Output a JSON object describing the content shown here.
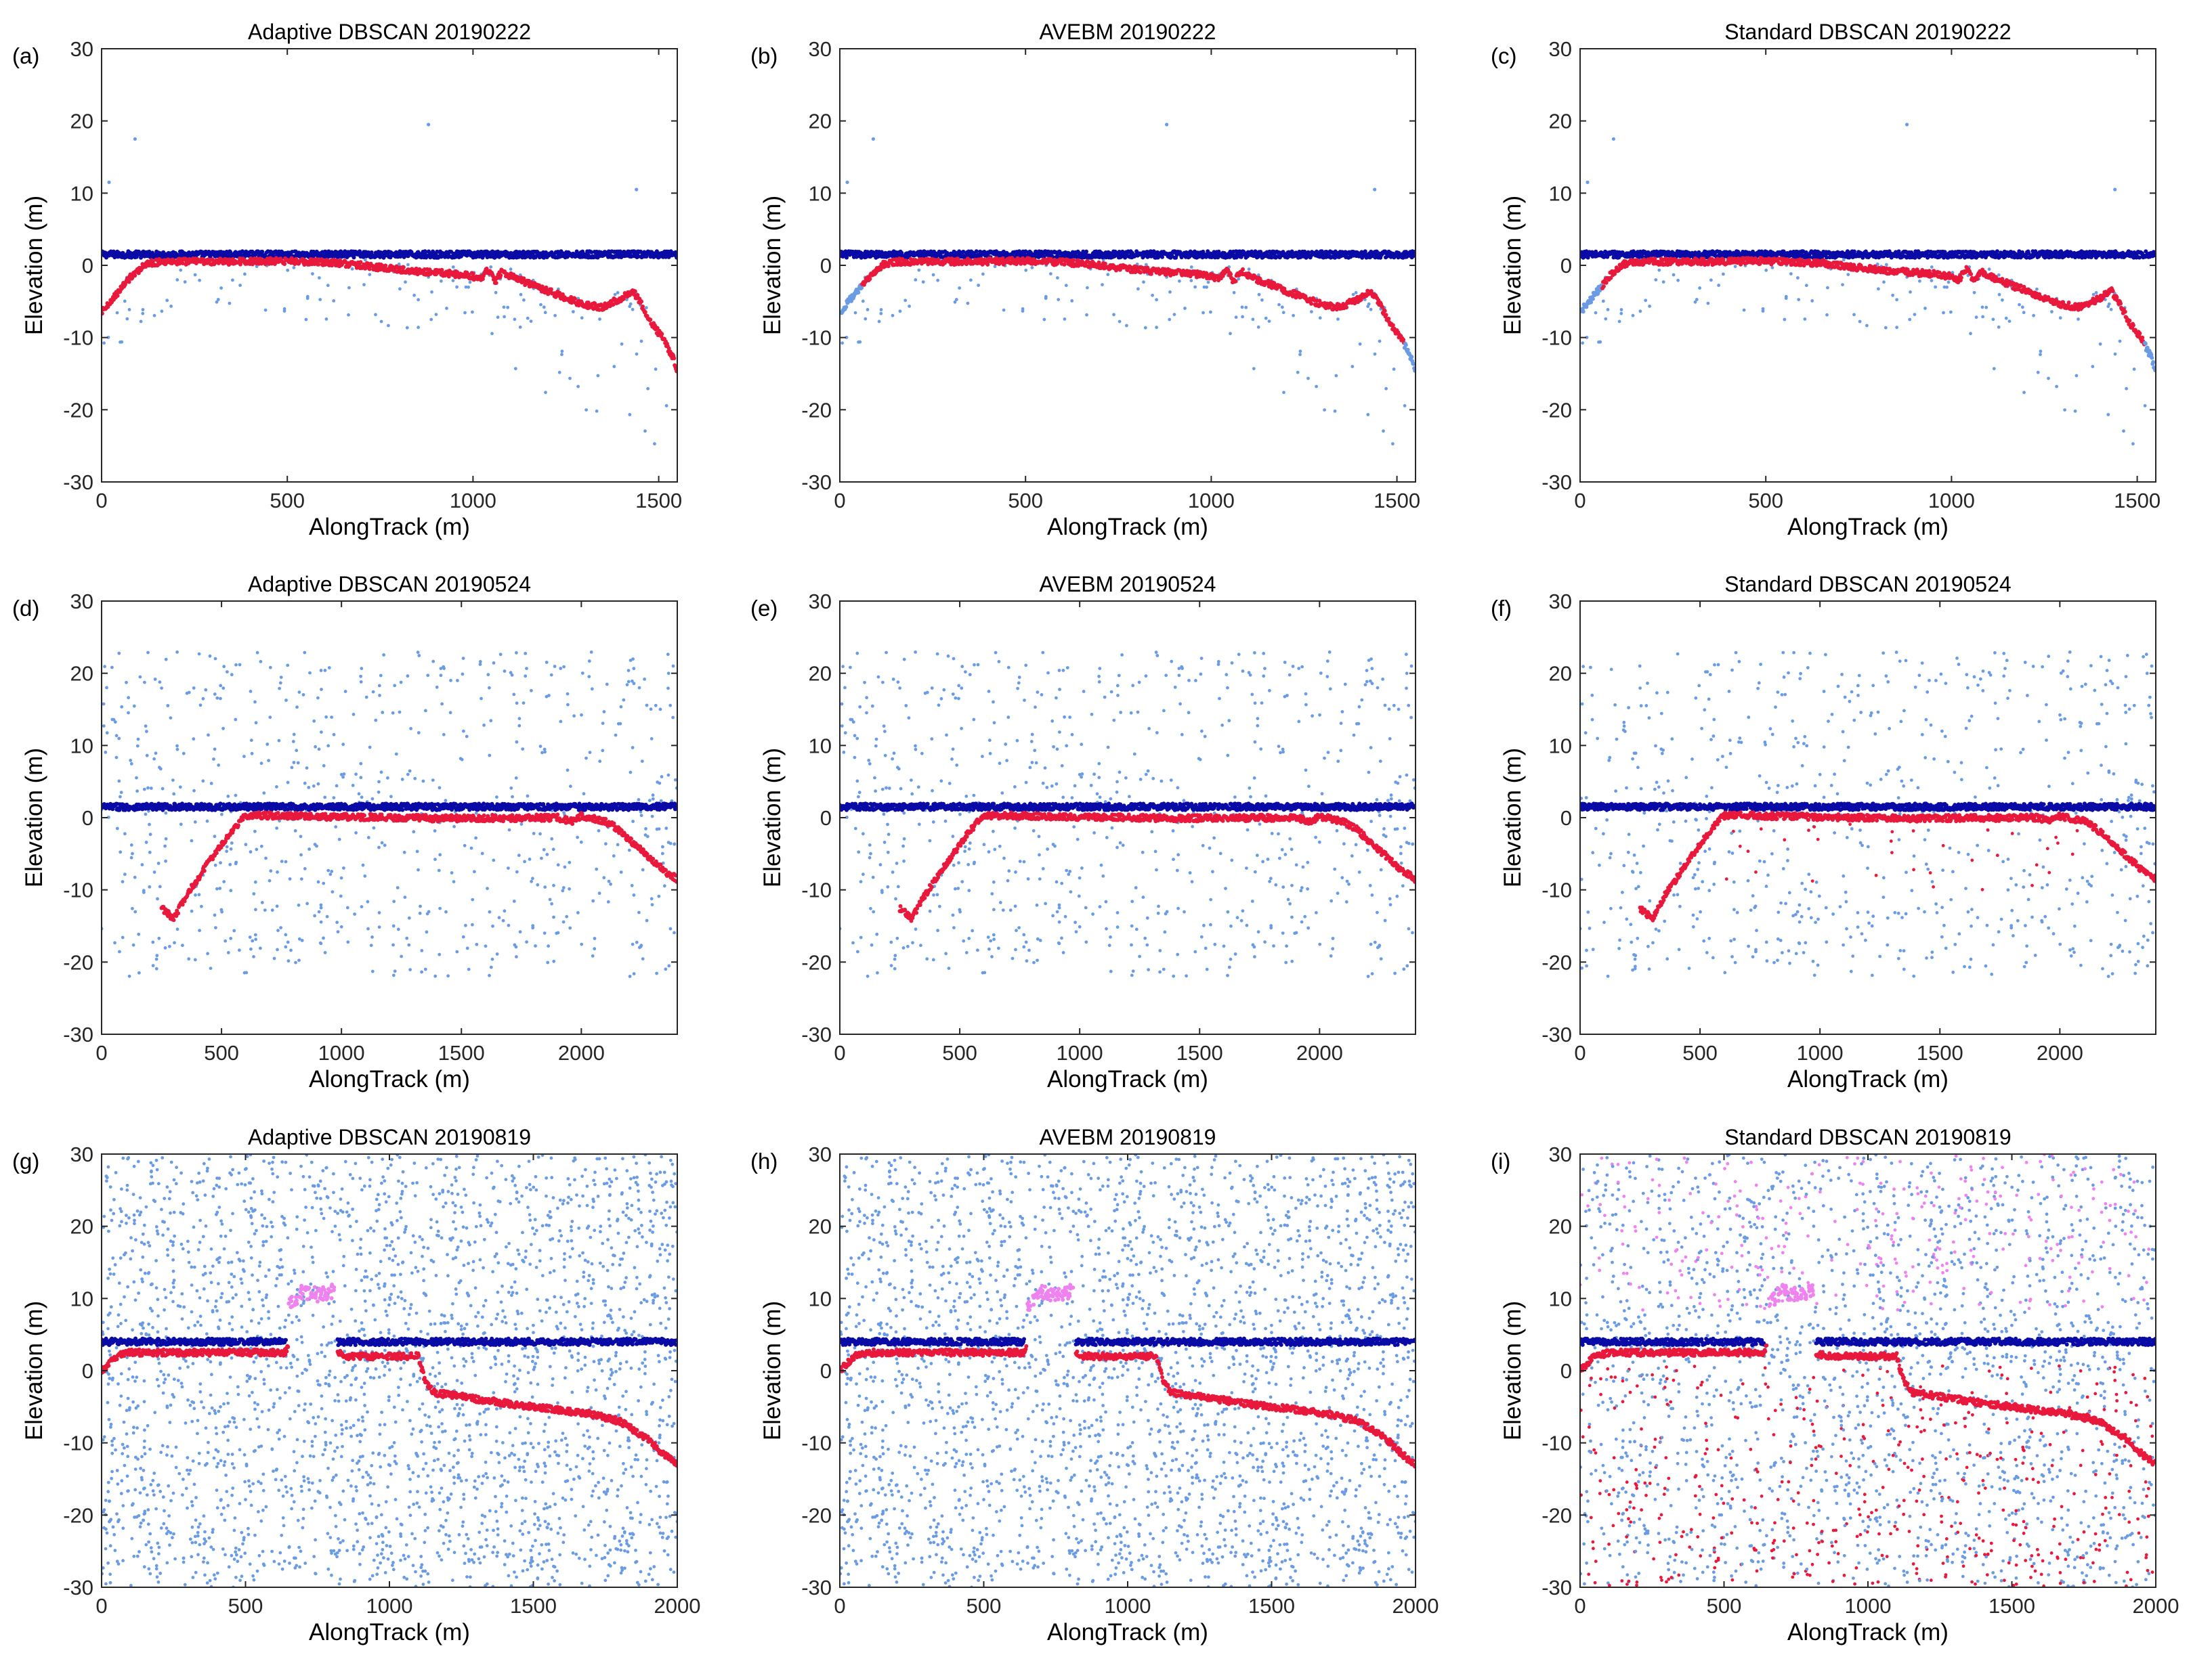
{
  "chart_data": [
    {
      "type": "scatter",
      "panel_label": "(a)",
      "title": "Adaptive DBSCAN 20190222",
      "xlabel": "AlongTrack (m)",
      "ylabel": "Elevation (m)",
      "xlim": [
        0,
        1550
      ],
      "ylim": [
        -30,
        30
      ],
      "xticks": [
        "0",
        "500",
        "1000",
        "1500"
      ],
      "yticks": [
        "-30",
        "-20",
        "-10",
        "0",
        "10",
        "20",
        "30"
      ],
      "scene": "s1",
      "method": "adaptive",
      "series": [
        {
          "name": "sea surface",
          "color": "#0a0aa6"
        },
        {
          "name": "bathymetry",
          "color": "#e8193c"
        },
        {
          "name": "noise",
          "color": "#6a9be3"
        }
      ]
    },
    {
      "type": "scatter",
      "panel_label": "(b)",
      "title": "AVEBM 20190222",
      "xlabel": "AlongTrack (m)",
      "ylabel": "Elevation (m)",
      "xlim": [
        0,
        1550
      ],
      "ylim": [
        -30,
        30
      ],
      "xticks": [
        "0",
        "500",
        "1000",
        "1500"
      ],
      "yticks": [
        "-30",
        "-20",
        "-10",
        "0",
        "10",
        "20",
        "30"
      ],
      "scene": "s1",
      "method": "avebm",
      "series": [
        {
          "name": "sea surface",
          "color": "#0a0aa6"
        },
        {
          "name": "bathymetry",
          "color": "#e8193c"
        },
        {
          "name": "noise",
          "color": "#6a9be3"
        }
      ]
    },
    {
      "type": "scatter",
      "panel_label": "(c)",
      "title": "Standard DBSCAN 20190222",
      "xlabel": "AlongTrack (m)",
      "ylabel": "Elevation (m)",
      "xlim": [
        0,
        1550
      ],
      "ylim": [
        -30,
        30
      ],
      "xticks": [
        "0",
        "500",
        "1000",
        "1500"
      ],
      "yticks": [
        "-30",
        "-20",
        "-10",
        "0",
        "10",
        "20",
        "30"
      ],
      "scene": "s1",
      "method": "standard",
      "series": [
        {
          "name": "sea surface",
          "color": "#0a0aa6"
        },
        {
          "name": "bathymetry",
          "color": "#e8193c"
        },
        {
          "name": "noise",
          "color": "#6a9be3"
        }
      ]
    },
    {
      "type": "scatter",
      "panel_label": "(d)",
      "title": "Adaptive DBSCAN 20190524",
      "xlabel": "AlongTrack (m)",
      "ylabel": "Elevation (m)",
      "xlim": [
        0,
        2400
      ],
      "ylim": [
        -30,
        30
      ],
      "xticks": [
        "0",
        "500",
        "1000",
        "1500",
        "2000"
      ],
      "yticks": [
        "-30",
        "-20",
        "-10",
        "0",
        "10",
        "20",
        "30"
      ],
      "scene": "s2",
      "method": "adaptive",
      "series": [
        {
          "name": "sea surface",
          "color": "#0a0aa6"
        },
        {
          "name": "bathymetry",
          "color": "#e8193c"
        },
        {
          "name": "noise",
          "color": "#6a9be3"
        }
      ]
    },
    {
      "type": "scatter",
      "panel_label": "(e)",
      "title": "AVEBM 20190524",
      "xlabel": "AlongTrack (m)",
      "ylabel": "Elevation (m)",
      "xlim": [
        0,
        2400
      ],
      "ylim": [
        -30,
        30
      ],
      "xticks": [
        "0",
        "500",
        "1000",
        "1500",
        "2000"
      ],
      "yticks": [
        "-30",
        "-20",
        "-10",
        "0",
        "10",
        "20",
        "30"
      ],
      "scene": "s2",
      "method": "avebm",
      "series": [
        {
          "name": "sea surface",
          "color": "#0a0aa6"
        },
        {
          "name": "bathymetry",
          "color": "#e8193c"
        },
        {
          "name": "noise",
          "color": "#6a9be3"
        }
      ]
    },
    {
      "type": "scatter",
      "panel_label": "(f)",
      "title": "Standard DBSCAN 20190524",
      "xlabel": "AlongTrack (m)",
      "ylabel": "Elevation (m)",
      "xlim": [
        0,
        2400
      ],
      "ylim": [
        -30,
        30
      ],
      "xticks": [
        "0",
        "500",
        "1000",
        "1500",
        "2000"
      ],
      "yticks": [
        "-30",
        "-20",
        "-10",
        "0",
        "10",
        "20",
        "30"
      ],
      "scene": "s2",
      "method": "standard",
      "series": [
        {
          "name": "sea surface",
          "color": "#0a0aa6"
        },
        {
          "name": "bathymetry",
          "color": "#e8193c"
        },
        {
          "name": "noise",
          "color": "#6a9be3"
        }
      ]
    },
    {
      "type": "scatter",
      "panel_label": "(g)",
      "title": "Adaptive DBSCAN 20190819",
      "xlabel": "AlongTrack (m)",
      "ylabel": "Elevation (m)",
      "xlim": [
        0,
        2000
      ],
      "ylim": [
        -30,
        30
      ],
      "xticks": [
        "0",
        "500",
        "1000",
        "1500",
        "2000"
      ],
      "yticks": [
        "-30",
        "-20",
        "-10",
        "0",
        "10",
        "20",
        "30"
      ],
      "scene": "s3",
      "method": "adaptive",
      "series": [
        {
          "name": "sea surface",
          "color": "#0a0aa6"
        },
        {
          "name": "bathymetry",
          "color": "#e8193c"
        },
        {
          "name": "noise",
          "color": "#6a9be3"
        },
        {
          "name": "above-surface",
          "color": "#ee82ee"
        }
      ]
    },
    {
      "type": "scatter",
      "panel_label": "(h)",
      "title": "AVEBM 20190819",
      "xlabel": "AlongTrack (m)",
      "ylabel": "Elevation (m)",
      "xlim": [
        0,
        2000
      ],
      "ylim": [
        -30,
        30
      ],
      "xticks": [
        "0",
        "500",
        "1000",
        "1500",
        "2000"
      ],
      "yticks": [
        "-30",
        "-20",
        "-10",
        "0",
        "10",
        "20",
        "30"
      ],
      "scene": "s3",
      "method": "avebm",
      "series": [
        {
          "name": "sea surface",
          "color": "#0a0aa6"
        },
        {
          "name": "bathymetry",
          "color": "#e8193c"
        },
        {
          "name": "noise",
          "color": "#6a9be3"
        },
        {
          "name": "above-surface",
          "color": "#ee82ee"
        }
      ]
    },
    {
      "type": "scatter",
      "panel_label": "(i)",
      "title": "Standard DBSCAN 20190819",
      "xlabel": "AlongTrack (m)",
      "ylabel": "Elevation (m)",
      "xlim": [
        0,
        2000
      ],
      "ylim": [
        -30,
        30
      ],
      "xticks": [
        "0",
        "500",
        "1000",
        "1500",
        "2000"
      ],
      "yticks": [
        "-30",
        "-20",
        "-10",
        "0",
        "10",
        "20",
        "30"
      ],
      "scene": "s3",
      "method": "standard",
      "series": [
        {
          "name": "sea surface",
          "color": "#0a0aa6"
        },
        {
          "name": "bathymetry",
          "color": "#e8193c"
        },
        {
          "name": "noise",
          "color": "#6a9be3"
        },
        {
          "name": "above-surface",
          "color": "#ee82ee"
        }
      ]
    }
  ],
  "scenes": {
    "s1": {
      "surface": 1.5,
      "seabed": [
        [
          0,
          -6.5
        ],
        [
          40,
          -4
        ],
        [
          80,
          -1.5
        ],
        [
          120,
          0.2
        ],
        [
          160,
          0.5
        ],
        [
          300,
          0.5
        ],
        [
          500,
          0.6
        ],
        [
          650,
          0.3
        ],
        [
          800,
          -0.6
        ],
        [
          950,
          -1.2
        ],
        [
          1000,
          -1.5
        ],
        [
          1020,
          -2
        ],
        [
          1040,
          -0.5
        ],
        [
          1060,
          -2.2
        ],
        [
          1080,
          -0.8
        ],
        [
          1100,
          -1.5
        ],
        [
          1150,
          -2.5
        ],
        [
          1200,
          -3.5
        ],
        [
          1250,
          -4.5
        ],
        [
          1300,
          -5.5
        ],
        [
          1350,
          -5.8
        ],
        [
          1400,
          -4.5
        ],
        [
          1430,
          -3.5
        ],
        [
          1450,
          -5
        ],
        [
          1480,
          -8
        ],
        [
          1510,
          -10
        ],
        [
          1540,
          -13
        ],
        [
          1550,
          -15
        ]
      ],
      "noise_count": 160,
      "noise_xrange": [
        0,
        1550
      ],
      "noise_yrange": [
        -26,
        2
      ],
      "outliers": [
        [
          90,
          17.5
        ],
        [
          880,
          19.5
        ],
        [
          20,
          11.5
        ],
        [
          1440,
          10.5
        ]
      ]
    },
    "s2": {
      "surface": 1.5,
      "seabed": [
        [
          250,
          -12.5
        ],
        [
          300,
          -14
        ],
        [
          350,
          -11
        ],
        [
          450,
          -6
        ],
        [
          550,
          -1.5
        ],
        [
          600,
          0.3
        ],
        [
          700,
          0.3
        ],
        [
          1000,
          0.1
        ],
        [
          1400,
          -0.1
        ],
        [
          1900,
          0
        ],
        [
          1960,
          -0.5
        ],
        [
          2000,
          0.2
        ],
        [
          2100,
          -0.5
        ],
        [
          2150,
          -1.5
        ],
        [
          2200,
          -3
        ],
        [
          2250,
          -4.5
        ],
        [
          2300,
          -6
        ],
        [
          2350,
          -7.5
        ],
        [
          2400,
          -8.5
        ]
      ],
      "noise_count": 700,
      "noise_xrange": [
        0,
        2400
      ],
      "noise_yrange": [
        -22,
        23
      ]
    },
    "s3": {
      "surface": 4,
      "surface_gap": [
        640,
        820
      ],
      "seabed": [
        [
          0,
          0
        ],
        [
          50,
          2
        ],
        [
          100,
          2.5
        ],
        [
          640,
          2.5
        ],
        [
          650,
          4
        ]
      ],
      "seabed2": [
        [
          820,
          2.5
        ],
        [
          850,
          2
        ],
        [
          1100,
          2
        ],
        [
          1120,
          -1
        ],
        [
          1150,
          -3
        ],
        [
          1400,
          -4.5
        ],
        [
          1500,
          -5
        ],
        [
          1600,
          -5.5
        ],
        [
          1700,
          -6
        ],
        [
          1800,
          -7
        ],
        [
          1900,
          -9.5
        ],
        [
          1950,
          -11.5
        ],
        [
          2000,
          -13
        ]
      ],
      "hump": [
        [
          650,
          9
        ],
        [
          700,
          11
        ],
        [
          750,
          10.5
        ],
        [
          800,
          11
        ]
      ],
      "noise_count": 2600,
      "noise_xrange": [
        0,
        2000
      ],
      "noise_yrange": [
        -30,
        30
      ]
    }
  }
}
